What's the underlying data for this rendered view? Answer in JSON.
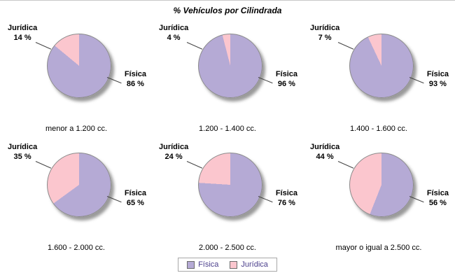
{
  "title": "% Vehículos por Cilindrada",
  "legend": {
    "items": [
      {
        "label": "Física",
        "color": "#b5aad5"
      },
      {
        "label": "Jurídica",
        "color": "#fbc6ce"
      }
    ]
  },
  "chart_data": {
    "type": "pie",
    "title": "% Vehículos por Cilindrada",
    "unit": "%",
    "series": [
      "Física",
      "Jurídica"
    ],
    "colors": {
      "Física": "#b5aad5",
      "Jurídica": "#fbc6ce"
    },
    "legend_position": "bottom",
    "pies": [
      {
        "category": "menor a 1.200 cc.",
        "slices": [
          {
            "name": "Física",
            "value": 86
          },
          {
            "name": "Jurídica",
            "value": 14
          }
        ]
      },
      {
        "category": "1.200 - 1.400 cc.",
        "slices": [
          {
            "name": "Física",
            "value": 96
          },
          {
            "name": "Jurídica",
            "value": 4
          }
        ]
      },
      {
        "category": "1.400 - 1.600 cc.",
        "slices": [
          {
            "name": "Física",
            "value": 93
          },
          {
            "name": "Jurídica",
            "value": 7
          }
        ]
      },
      {
        "category": "1.600 - 2.000 cc.",
        "slices": [
          {
            "name": "Física",
            "value": 65
          },
          {
            "name": "Jurídica",
            "value": 35
          }
        ]
      },
      {
        "category": "2.000 - 2.500 cc.",
        "slices": [
          {
            "name": "Física",
            "value": 76
          },
          {
            "name": "Jurídica",
            "value": 24
          }
        ]
      },
      {
        "category": "mayor o igual a 2.500 cc.",
        "slices": [
          {
            "name": "Física",
            "value": 56
          },
          {
            "name": "Jurídica",
            "value": 44
          }
        ]
      }
    ]
  }
}
